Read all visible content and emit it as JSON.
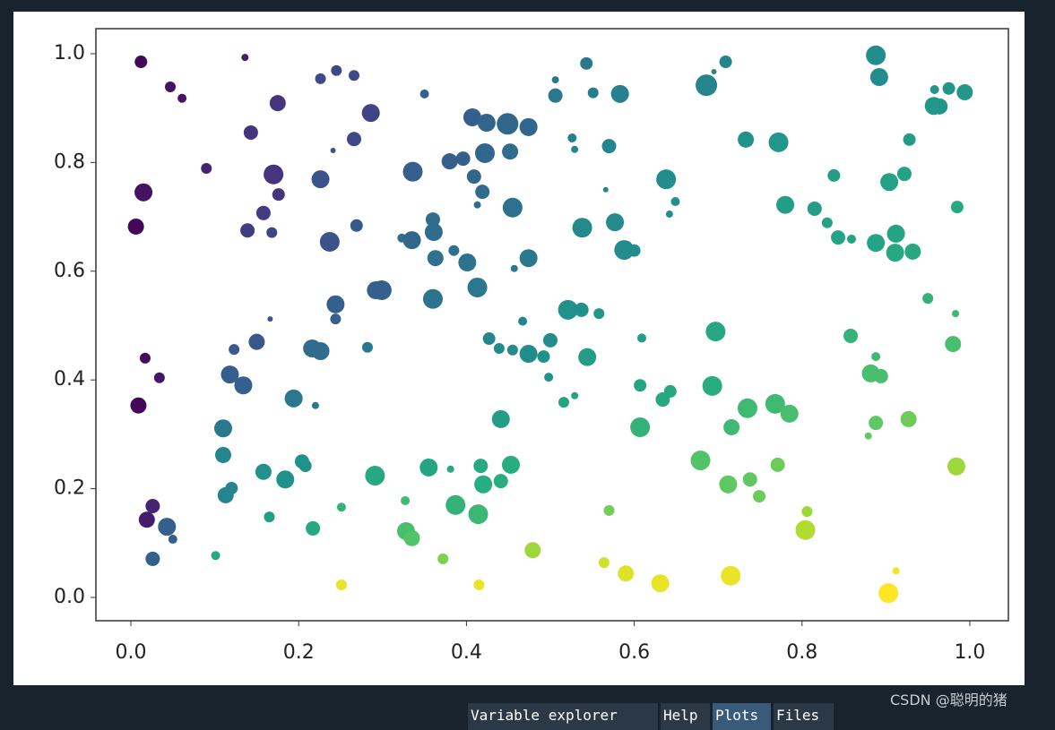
{
  "chart_data": {
    "type": "scatter",
    "colormap": "viridis",
    "grid": false,
    "xlim": [
      -0.0417,
      1.046
    ],
    "ylim": [
      -0.0428,
      1.046
    ],
    "xticks": [
      {
        "value": 0,
        "label": "0.0"
      },
      0.2,
      0.4,
      0.6,
      0.8,
      {
        "value": 1,
        "label": "1.0"
      }
    ],
    "yticks": [
      {
        "value": 0,
        "label": "0.0"
      },
      0.2,
      0.4,
      0.6,
      0.8,
      {
        "value": 1,
        "label": "1.0"
      }
    ],
    "x": [
      0.012,
      0.047,
      0.061,
      0.136,
      0.09,
      0.015,
      0.006,
      0.017,
      0.034,
      0.009,
      0.026,
      0.019,
      0.043,
      0.05,
      0.026,
      0.101,
      0.143,
      0.175,
      0.17,
      0.176,
      0.158,
      0.139,
      0.168,
      0.226,
      0.245,
      0.266,
      0.286,
      0.266,
      0.241,
      0.226,
      0.237,
      0.269,
      0.166,
      0.244,
      0.244,
      0.299,
      0.292,
      0.15,
      0.123,
      0.118,
      0.134,
      0.216,
      0.226,
      0.282,
      0.194,
      0.22,
      0.11,
      0.11,
      0.12,
      0.113,
      0.158,
      0.184,
      0.204,
      0.208,
      0.165,
      0.217,
      0.291,
      0.251,
      0.251,
      0.328,
      0.335,
      0.327,
      0.372,
      0.415,
      0.35,
      0.336,
      0.323,
      0.335,
      0.36,
      0.361,
      0.363,
      0.36,
      0.38,
      0.396,
      0.407,
      0.409,
      0.422,
      0.424,
      0.449,
      0.474,
      0.452,
      0.419,
      0.413,
      0.455,
      0.385,
      0.401,
      0.413,
      0.457,
      0.474,
      0.427,
      0.439,
      0.455,
      0.467,
      0.474,
      0.492,
      0.5,
      0.498,
      0.441,
      0.417,
      0.42,
      0.441,
      0.453,
      0.381,
      0.387,
      0.414,
      0.355,
      0.479,
      0.543,
      0.506,
      0.506,
      0.551,
      0.583,
      0.526,
      0.529,
      0.57,
      0.566,
      0.538,
      0.577,
      0.588,
      0.6,
      0.521,
      0.537,
      0.558,
      0.544,
      0.516,
      0.529,
      0.57,
      0.564,
      0.59,
      0.631,
      0.609,
      0.607,
      0.634,
      0.643,
      0.607,
      0.686,
      0.695,
      0.709,
      0.638,
      0.649,
      0.642,
      0.733,
      0.772,
      0.78,
      0.697,
      0.693,
      0.716,
      0.735,
      0.768,
      0.785,
      0.679,
      0.712,
      0.738,
      0.749,
      0.771,
      0.715,
      0.804,
      0.806,
      0.815,
      0.838,
      0.83,
      0.843,
      0.859,
      0.858,
      0.882,
      0.894,
      0.888,
      0.888,
      0.879,
      0.927,
      0.903,
      0.912,
      0.888,
      0.892,
      0.888,
      0.904,
      0.922,
      0.912,
      0.911,
      0.932,
      0.928,
      0.957,
      0.964,
      0.958,
      0.975,
      0.994,
      0.985,
      0.95,
      0.983,
      0.98,
      0.984
    ],
    "y": [
      0.985,
      0.939,
      0.918,
      0.993,
      0.789,
      0.745,
      0.682,
      0.44,
      0.404,
      0.353,
      0.168,
      0.143,
      0.13,
      0.107,
      0.071,
      0.077,
      0.855,
      0.909,
      0.778,
      0.741,
      0.707,
      0.675,
      0.671,
      0.954,
      0.969,
      0.96,
      0.891,
      0.843,
      0.822,
      0.769,
      0.654,
      0.684,
      0.512,
      0.539,
      0.512,
      0.565,
      0.565,
      0.47,
      0.456,
      0.41,
      0.39,
      0.458,
      0.453,
      0.46,
      0.366,
      0.353,
      0.311,
      0.262,
      0.201,
      0.188,
      0.231,
      0.217,
      0.25,
      0.242,
      0.148,
      0.127,
      0.224,
      0.166,
      0.023,
      0.122,
      0.109,
      0.178,
      0.071,
      0.023,
      0.926,
      0.783,
      0.661,
      0.657,
      0.695,
      0.672,
      0.624,
      0.549,
      0.802,
      0.807,
      0.883,
      0.774,
      0.817,
      0.873,
      0.871,
      0.865,
      0.82,
      0.746,
      0.722,
      0.717,
      0.638,
      0.616,
      0.57,
      0.605,
      0.624,
      0.476,
      0.458,
      0.455,
      0.508,
      0.448,
      0.443,
      0.473,
      0.405,
      0.328,
      0.242,
      0.208,
      0.214,
      0.244,
      0.236,
      0.17,
      0.153,
      0.239,
      0.087,
      0.982,
      0.952,
      0.923,
      0.928,
      0.926,
      0.845,
      0.824,
      0.83,
      0.75,
      0.68,
      0.69,
      0.639,
      0.638,
      0.529,
      0.529,
      0.522,
      0.442,
      0.359,
      0.371,
      0.16,
      0.064,
      0.044,
      0.026,
      0.477,
      0.39,
      0.364,
      0.379,
      0.313,
      0.942,
      0.967,
      0.985,
      0.769,
      0.728,
      0.705,
      0.842,
      0.837,
      0.722,
      0.489,
      0.389,
      0.313,
      0.348,
      0.356,
      0.338,
      0.252,
      0.208,
      0.217,
      0.186,
      0.244,
      0.04,
      0.124,
      0.158,
      0.715,
      0.776,
      0.689,
      0.662,
      0.659,
      0.481,
      0.412,
      0.407,
      0.443,
      0.321,
      0.297,
      0.328,
      0.008,
      0.049,
      0.997,
      0.957,
      0.652,
      0.764,
      0.779,
      0.669,
      0.634,
      0.636,
      0.842,
      0.904,
      0.903,
      0.934,
      0.936,
      0.929,
      0.718,
      0.55,
      0.522,
      0.466,
      0.241
    ],
    "sizes": [
      49,
      36,
      25,
      16,
      36,
      100,
      81,
      36,
      36,
      81,
      64,
      81,
      100,
      25,
      64,
      25,
      64,
      81,
      121,
      49,
      64,
      64,
      36,
      36,
      36,
      36,
      100,
      64,
      9,
      100,
      121,
      49,
      9,
      100,
      36,
      121,
      100,
      81,
      36,
      100,
      100,
      100,
      100,
      36,
      100,
      16,
      100,
      81,
      49,
      81,
      81,
      100,
      64,
      49,
      36,
      64,
      121,
      25,
      36,
      100,
      81,
      25,
      36,
      36,
      25,
      121,
      25,
      100,
      64,
      100,
      81,
      121,
      81,
      64,
      100,
      64,
      121,
      100,
      144,
      100,
      81,
      64,
      16,
      121,
      36,
      100,
      121,
      16,
      100,
      49,
      36,
      36,
      25,
      100,
      49,
      64,
      25,
      100,
      64,
      100,
      64,
      100,
      16,
      121,
      121,
      100,
      81,
      49,
      16,
      64,
      36,
      100,
      25,
      16,
      64,
      9,
      121,
      100,
      121,
      49,
      121,
      64,
      36,
      100,
      36,
      16,
      36,
      36,
      81,
      100,
      25,
      49,
      64,
      49,
      121,
      144,
      9,
      49,
      121,
      25,
      16,
      81,
      121,
      100,
      121,
      121,
      81,
      121,
      121,
      100,
      121,
      100,
      64,
      49,
      64,
      121,
      121,
      36,
      64,
      49,
      36,
      64,
      25,
      64,
      100,
      64,
      25,
      64,
      16,
      81,
      121,
      16,
      121,
      100,
      100,
      100,
      64,
      100,
      100,
      81,
      49,
      100,
      81,
      25,
      49,
      81,
      49,
      36,
      16,
      81,
      100
    ],
    "c": [
      0.02,
      0.05,
      0.05,
      0.08,
      0.1,
      0.05,
      0.02,
      0.03,
      0.06,
      0.02,
      0.1,
      0.08,
      0.3,
      0.3,
      0.3,
      0.6,
      0.15,
      0.15,
      0.15,
      0.15,
      0.18,
      0.18,
      0.2,
      0.22,
      0.22,
      0.22,
      0.2,
      0.22,
      0.25,
      0.25,
      0.25,
      0.28,
      0.25,
      0.3,
      0.3,
      0.3,
      0.3,
      0.27,
      0.28,
      0.3,
      0.3,
      0.35,
      0.35,
      0.4,
      0.4,
      0.4,
      0.4,
      0.45,
      0.45,
      0.45,
      0.5,
      0.5,
      0.5,
      0.5,
      0.55,
      0.6,
      0.6,
      0.65,
      0.97,
      0.7,
      0.72,
      0.68,
      0.8,
      0.97,
      0.3,
      0.3,
      0.35,
      0.33,
      0.35,
      0.35,
      0.37,
      0.38,
      0.3,
      0.3,
      0.3,
      0.33,
      0.33,
      0.32,
      0.33,
      0.33,
      0.35,
      0.35,
      0.35,
      0.37,
      0.37,
      0.38,
      0.4,
      0.4,
      0.4,
      0.45,
      0.47,
      0.47,
      0.45,
      0.48,
      0.5,
      0.48,
      0.5,
      0.55,
      0.6,
      0.62,
      0.62,
      0.62,
      0.6,
      0.65,
      0.67,
      0.58,
      0.85,
      0.4,
      0.4,
      0.4,
      0.42,
      0.43,
      0.43,
      0.45,
      0.45,
      0.45,
      0.47,
      0.47,
      0.48,
      0.48,
      0.5,
      0.5,
      0.52,
      0.55,
      0.58,
      0.58,
      0.78,
      0.93,
      0.95,
      0.97,
      0.55,
      0.58,
      0.6,
      0.6,
      0.65,
      0.45,
      0.45,
      0.45,
      0.48,
      0.5,
      0.5,
      0.5,
      0.52,
      0.55,
      0.6,
      0.62,
      0.68,
      0.68,
      0.68,
      0.7,
      0.72,
      0.75,
      0.75,
      0.77,
      0.77,
      0.97,
      0.88,
      0.85,
      0.55,
      0.55,
      0.57,
      0.58,
      0.58,
      0.65,
      0.7,
      0.7,
      0.68,
      0.75,
      0.75,
      0.77,
      1.0,
      0.98,
      0.48,
      0.48,
      0.58,
      0.57,
      0.57,
      0.58,
      0.6,
      0.6,
      0.55,
      0.52,
      0.52,
      0.52,
      0.52,
      0.53,
      0.6,
      0.65,
      0.67,
      0.7,
      0.85
    ]
  },
  "ui": {
    "tabs": [
      "Variable explorer",
      "Help",
      "Plots",
      "Files"
    ],
    "watermark": "CSDN @聪明的猪"
  }
}
